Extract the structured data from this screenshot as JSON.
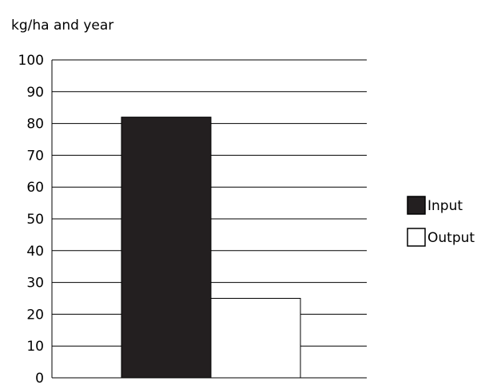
{
  "chart_data": {
    "type": "bar",
    "title": "",
    "xlabel": "",
    "ylabel": "kg/ha and year",
    "ylim": [
      0,
      100
    ],
    "yticks": [
      0,
      10,
      20,
      30,
      40,
      50,
      60,
      70,
      80,
      90,
      100
    ],
    "grid": true,
    "legend_position": "right",
    "series": [
      {
        "name": "Input",
        "value": 82,
        "color": "#231f20"
      },
      {
        "name": "Output",
        "value": 25,
        "color": "#ffffff"
      }
    ]
  }
}
